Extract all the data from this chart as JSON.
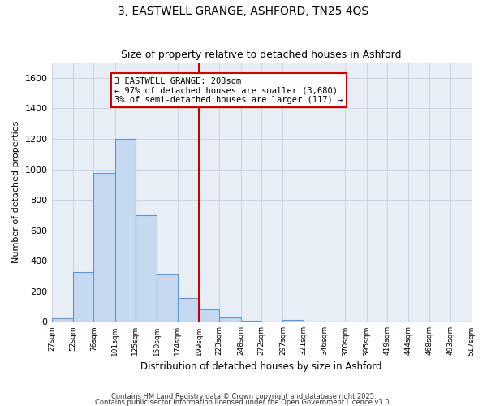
{
  "title": "3, EASTWELL GRANGE, ASHFORD, TN25 4QS",
  "subtitle": "Size of property relative to detached houses in Ashford",
  "xlabel": "Distribution of detached houses by size in Ashford",
  "ylabel": "Number of detached properties",
  "bar_color": "#c6d9f1",
  "bar_edge_color": "#5b9bd5",
  "background_color": "#ffffff",
  "plot_bg_color": "#e8eef6",
  "grid_color": "#c0c8d8",
  "annotation_box_edge": "#cc0000",
  "vline_color": "#cc0000",
  "vline_x": 199,
  "annotation_text": "3 EASTWELL GRANGE: 203sqm\n← 97% of detached houses are smaller (3,680)\n3% of semi-detached houses are larger (117) →",
  "footer1": "Contains HM Land Registry data © Crown copyright and database right 2025.",
  "footer2": "Contains public sector information licensed under the Open Government Licence v3.0.",
  "bins": [
    27,
    52,
    76,
    101,
    125,
    150,
    174,
    199,
    223,
    248,
    272,
    297,
    321,
    346,
    370,
    395,
    419,
    444,
    468,
    493,
    517
  ],
  "counts": [
    25,
    325,
    975,
    1200,
    700,
    310,
    155,
    80,
    27,
    5,
    0,
    15,
    0,
    0,
    0,
    0,
    0,
    0,
    0,
    0,
    3
  ],
  "xlim_min": 27,
  "xlim_max": 517,
  "ylim_max": 1700,
  "yticks": [
    0,
    200,
    400,
    600,
    800,
    1000,
    1200,
    1400,
    1600
  ]
}
